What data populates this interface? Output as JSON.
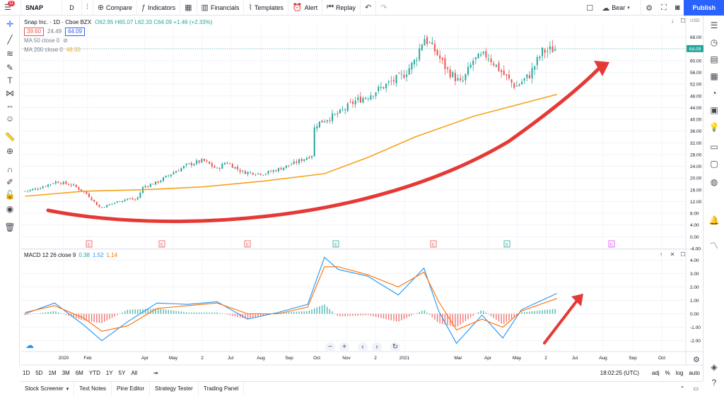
{
  "toolbar": {
    "symbol": "SNAP",
    "interval": "D",
    "compare": "Compare",
    "indicators": "Indicators",
    "financials": "Financials",
    "templates": "Templates",
    "alert": "Alert",
    "replay": "Replay",
    "layout_name": "Bear",
    "publish": "Publish",
    "notif_count": "11"
  },
  "legend": {
    "title": "Snap Inc. · 1D · Cboe BZX",
    "ohlc": "O62.95 H65.07 L62.33 C64.09 +1.46 (+2.33%)",
    "bid": "39.60",
    "spread": "24.49",
    "ask": "64.09",
    "ma50": "MA 50 close 0",
    "ma200": "MA 200 close 0",
    "ma200_value": "48.50"
  },
  "macd_legend": {
    "label": "MACD 12 26 close 9",
    "v1": "0.38",
    "v2": "1.52",
    "v3": "1.14"
  },
  "price_axis": {
    "currency": "USD",
    "last_price": "64.09",
    "ticks": [
      "68.00",
      "64.00",
      "60.00",
      "56.00",
      "52.00",
      "48.00",
      "44.00",
      "40.00",
      "36.00",
      "32.00",
      "28.00",
      "24.00",
      "20.00",
      "16.00",
      "12.00",
      "8.00",
      "4.00",
      "0.00",
      "-4.00"
    ]
  },
  "macd_axis": {
    "ticks": [
      "4.00",
      "3.00",
      "2.00",
      "1.00",
      "0.00",
      "-1.00",
      "-2.00"
    ]
  },
  "time_axis": {
    "labels": [
      "2020",
      "Feb",
      "Apr",
      "May",
      "2",
      "Jul",
      "Aug",
      "Sep",
      "Oct",
      "Nov",
      "2",
      "2021",
      "Mar",
      "Apr",
      "May",
      "2",
      "Jul",
      "Aug",
      "Sep",
      "Oct"
    ]
  },
  "earnings_markers": [
    "E",
    "E",
    "E",
    "E",
    "E",
    "E",
    "E"
  ],
  "time_bar": {
    "ranges": [
      "1D",
      "5D",
      "1M",
      "3M",
      "6M",
      "YTD",
      "1Y",
      "5Y",
      "All"
    ],
    "clock": "18:02:25 (UTC)",
    "adj": "adj",
    "pct": "%",
    "log": "log",
    "auto": "auto"
  },
  "bottom_tabs": [
    "Stock Screener",
    "Text Notes",
    "Pine Editor",
    "Strategy Tester",
    "Trading Panel"
  ],
  "colors": {
    "up": "#26a69a",
    "down": "#ef5350",
    "ma200": "#f7a21b",
    "macd": "#2196f3",
    "signal": "#ff6d00",
    "arrow": "#e53935",
    "accent": "#2962ff"
  },
  "chart_data": {
    "type": "line",
    "title": "Snap Inc. · 1D · Cboe BZX",
    "x_range": [
      "2020-01-01",
      "2021-10-31"
    ],
    "ylim": [
      -4,
      72
    ],
    "log_scale": false,
    "grid": true,
    "series": [
      {
        "name": "SNAP close",
        "x": [
          "2020-01-02",
          "2020-01-15",
          "2020-02-03",
          "2020-02-20",
          "2020-03-05",
          "2020-03-18",
          "2020-04-01",
          "2020-04-15",
          "2020-04-24",
          "2020-05-01",
          "2020-05-15",
          "2020-06-01",
          "2020-06-15",
          "2020-07-01",
          "2020-07-15",
          "2020-07-24",
          "2020-08-10",
          "2020-09-01",
          "2020-09-15",
          "2020-10-01",
          "2020-10-20",
          "2020-10-22",
          "2020-11-02",
          "2020-11-16",
          "2020-12-01",
          "2020-12-15",
          "2021-01-04",
          "2021-01-20",
          "2021-02-01",
          "2021-02-10",
          "2021-02-22",
          "2021-03-05",
          "2021-03-20",
          "2021-04-01",
          "2021-04-15",
          "2021-04-30",
          "2021-05-14",
          "2021-05-28",
          "2021-06-10",
          "2021-06-25"
        ],
        "values": [
          15.5,
          16.5,
          18.8,
          17.5,
          14.5,
          9.8,
          11.5,
          13.0,
          12.5,
          17.0,
          18.5,
          22.0,
          24.5,
          26.0,
          23.0,
          25.5,
          22.0,
          21.5,
          23.0,
          25.0,
          28.0,
          38.0,
          40.0,
          42.0,
          46.0,
          48.0,
          52.0,
          55.0,
          60.0,
          68.0,
          63.0,
          57.0,
          52.0,
          60.0,
          62.0,
          56.0,
          51.0,
          55.0,
          63.0,
          64.09
        ]
      },
      {
        "name": "MA 200",
        "x": [
          "2020-01-02",
          "2020-03-01",
          "2020-05-01",
          "2020-07-01",
          "2020-09-01",
          "2020-11-01",
          "2020-12-15",
          "2021-02-01",
          "2021-04-01",
          "2021-06-25"
        ],
        "values": [
          13.8,
          15.5,
          16.0,
          17.0,
          19.0,
          21.5,
          27.0,
          34.0,
          41.0,
          48.5
        ]
      }
    ],
    "macd": {
      "title": "MACD 12 26 close 9",
      "ylim": [
        -2.6,
        4.6
      ],
      "x": [
        "2020-01-02",
        "2020-02-01",
        "2020-03-01",
        "2020-03-20",
        "2020-04-15",
        "2020-05-15",
        "2020-06-15",
        "2020-07-15",
        "2020-08-15",
        "2020-09-15",
        "2020-10-15",
        "2020-11-01",
        "2020-11-15",
        "2020-12-15",
        "2021-01-15",
        "2021-02-10",
        "2021-02-25",
        "2021-03-15",
        "2021-04-10",
        "2021-05-01",
        "2021-05-20",
        "2021-06-25"
      ],
      "macd": [
        0.0,
        0.8,
        -0.8,
        -2.0,
        -0.6,
        0.8,
        0.7,
        0.9,
        -0.4,
        0.1,
        0.7,
        4.2,
        3.3,
        2.8,
        1.4,
        3.4,
        0.2,
        -2.2,
        -0.1,
        -1.8,
        0.3,
        1.52
      ],
      "signal": [
        0.1,
        0.6,
        -0.3,
        -1.3,
        -0.9,
        0.4,
        0.6,
        0.8,
        0.0,
        0.0,
        0.5,
        3.5,
        3.5,
        2.9,
        2.0,
        3.1,
        0.9,
        -1.2,
        -0.4,
        -1.0,
        0.2,
        1.14
      ],
      "histogram": [
        -0.1,
        0.2,
        -0.5,
        -0.7,
        0.3,
        0.4,
        0.1,
        0.1,
        -0.4,
        0.1,
        0.2,
        0.7,
        -0.2,
        -0.1,
        -0.6,
        0.3,
        -0.7,
        -1.0,
        0.3,
        -0.8,
        0.1,
        0.38
      ]
    }
  }
}
